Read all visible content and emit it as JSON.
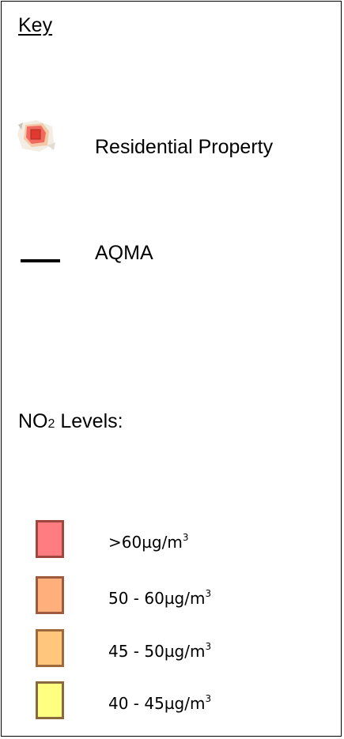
{
  "legend": {
    "title": "Key",
    "residential": {
      "label": "Residential Property",
      "icon": "residential-property-icon"
    },
    "aqma": {
      "label": "AQMA",
      "icon": "aqma-line-icon"
    },
    "no2": {
      "label_prefix": "NO",
      "label_sub": "2",
      "label_suffix": " Levels:"
    },
    "bands": [
      {
        "text": ">60µg/m",
        "sup": "3",
        "fill": "#ff7c80",
        "border": "#a0463c"
      },
      {
        "text": "50 - 60µg/m",
        "sup": "3",
        "fill": "#ffb07a",
        "border": "#9e5a3c"
      },
      {
        "text": "45 - 50µg/m",
        "sup": "3",
        "fill": "#ffc67c",
        "border": "#9e6a3c"
      },
      {
        "text": "40 - 45µg/m",
        "sup": "3",
        "fill": "#ffff80",
        "border": "#8a6a3c"
      }
    ]
  }
}
